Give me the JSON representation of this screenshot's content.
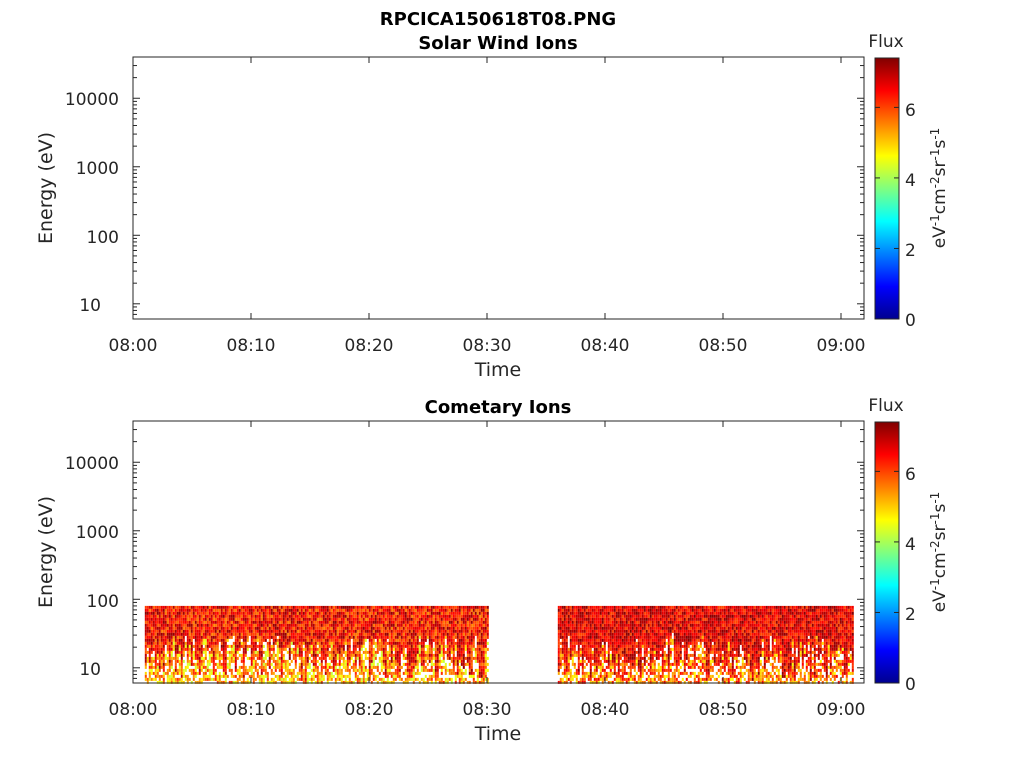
{
  "figure": {
    "title": "RPCICA150618T08.PNG"
  },
  "chart_data": [
    {
      "type": "heatmap",
      "title": "Solar Wind Ions",
      "xlabel": "Time",
      "ylabel": "Energy (eV)",
      "x_ticks": [
        "08:00",
        "08:10",
        "08:20",
        "08:30",
        "08:40",
        "08:50",
        "09:00"
      ],
      "xlim": [
        "08:00",
        "09:02"
      ],
      "y_scale": "log",
      "y_ticks": [
        "10",
        "100",
        "1000",
        "10000"
      ],
      "ylim": [
        6,
        40000
      ],
      "colorbar": {
        "title": "Flux",
        "label": "eV-1cm-2sr-1s-1",
        "ticks": [
          "0",
          "2",
          "4",
          "6"
        ],
        "range": [
          0,
          7.4
        ]
      },
      "data_segments": []
    },
    {
      "type": "heatmap",
      "title": "Cometary Ions",
      "xlabel": "Time",
      "ylabel": "Energy (eV)",
      "x_ticks": [
        "08:00",
        "08:10",
        "08:20",
        "08:30",
        "08:40",
        "08:50",
        "09:00"
      ],
      "xlim": [
        "08:00",
        "09:02"
      ],
      "y_scale": "log",
      "y_ticks": [
        "10",
        "100",
        "1000",
        "10000"
      ],
      "ylim": [
        6,
        40000
      ],
      "colorbar": {
        "title": "Flux",
        "label": "eV-1cm-2sr-1s-1",
        "ticks": [
          "0",
          "2",
          "4",
          "6"
        ],
        "range": [
          0,
          7.4
        ]
      },
      "energy_range": [
        6,
        80
      ],
      "data_segments": [
        {
          "start": "08:01",
          "end": "08:30",
          "typical_flux": 5.8,
          "peak_flux": 7.3
        },
        {
          "start": "08:36",
          "end": "09:01",
          "typical_flux": 6.2,
          "peak_flux": 7.4
        }
      ]
    }
  ],
  "colormap": [
    "#00008f",
    "#0000ff",
    "#00ffff",
    "#ffff00",
    "#ff0000",
    "#800000"
  ]
}
